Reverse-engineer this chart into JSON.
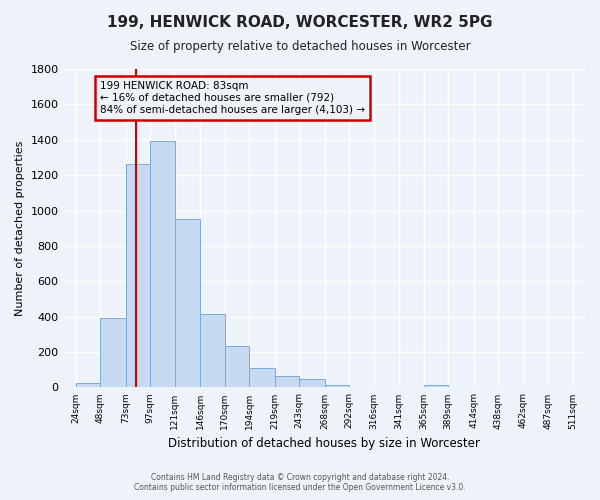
{
  "title": "199, HENWICK ROAD, WORCESTER, WR2 5PG",
  "subtitle": "Size of property relative to detached houses in Worcester",
  "xlabel": "Distribution of detached houses by size in Worcester",
  "ylabel": "Number of detached properties",
  "bar_values": [
    25,
    390,
    1265,
    1395,
    950,
    415,
    235,
    110,
    65,
    50,
    12,
    0,
    0,
    0,
    12,
    0,
    0,
    0,
    0,
    0
  ],
  "tick_labels": [
    "24sqm",
    "48sqm",
    "73sqm",
    "97sqm",
    "121sqm",
    "146sqm",
    "170sqm",
    "194sqm",
    "219sqm",
    "243sqm",
    "268sqm",
    "292sqm",
    "316sqm",
    "341sqm",
    "365sqm",
    "389sqm",
    "414sqm",
    "438sqm",
    "462sqm",
    "487sqm",
    "511sqm"
  ],
  "bar_color": "#c5d9f0",
  "bar_edge_color": "#7aaadc",
  "vline_x": 83,
  "vline_color": "#cc0000",
  "ylim": [
    0,
    1800
  ],
  "yticks": [
    0,
    200,
    400,
    600,
    800,
    1000,
    1200,
    1400,
    1600,
    1800
  ],
  "annotation_title": "199 HENWICK ROAD: 83sqm",
  "annotation_line1": "← 16% of detached houses are smaller (792)",
  "annotation_line2": "84% of semi-detached houses are larger (4,103) →",
  "annotation_box_color": "#cc0000",
  "footer_line1": "Contains HM Land Registry data © Crown copyright and database right 2024.",
  "footer_line2": "Contains public sector information licensed under the Open Government Licence v3.0.",
  "background_color": "#eef2f9",
  "grid_color": "#ffffff"
}
